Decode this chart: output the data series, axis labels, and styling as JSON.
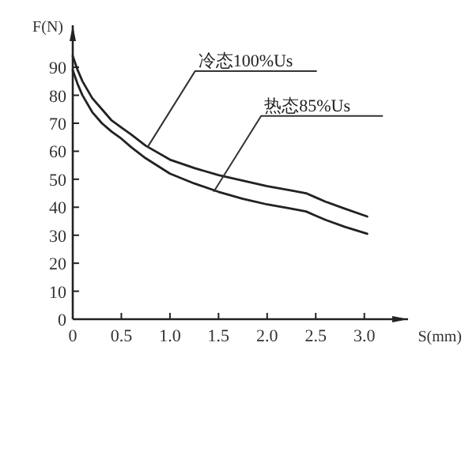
{
  "chart_data": {
    "type": "line",
    "xlabel": "S(mm)",
    "ylabel": "F(N)",
    "xlim": [
      0,
      3.45
    ],
    "ylim": [
      0,
      105
    ],
    "xticks": [
      0,
      {
        "value": 0.5,
        "label": "0.5"
      },
      {
        "value": 1,
        "label": "1.0"
      },
      {
        "value": 1.5,
        "label": "1.5"
      },
      {
        "value": 2,
        "label": "2.0"
      },
      {
        "value": 2.5,
        "label": "2.5"
      },
      {
        "value": 3,
        "label": "3.0"
      }
    ],
    "yticks": [
      0,
      10,
      20,
      30,
      40,
      50,
      60,
      70,
      80,
      90
    ],
    "x": [
      0,
      0.05,
      0.1,
      0.2,
      0.3,
      0.4,
      0.5,
      0.6,
      0.75,
      1.0,
      1.25,
      1.5,
      1.75,
      2.0,
      2.25,
      2.4,
      2.5,
      2.6,
      2.8,
      3.03
    ],
    "series": [
      {
        "color": "#222222",
        "values": [
          94,
          89,
          85,
          79,
          75,
          71,
          68.5,
          66,
          62,
          57,
          54,
          51.5,
          49.5,
          47.5,
          46,
          45,
          43.5,
          42,
          39.5,
          36.7
        ]
      },
      {
        "color": "#222222",
        "values": [
          89,
          84,
          80,
          74,
          70,
          67,
          64.5,
          61.5,
          57.5,
          52,
          48.5,
          45.5,
          43,
          41,
          39.5,
          38.5,
          37,
          35.5,
          33,
          30.5
        ]
      }
    ],
    "annotations": [
      {
        "text": "冷态100%Us",
        "x": 0.77,
        "y": 61.5
      },
      {
        "text": "热态85%Us",
        "x": 1.45,
        "y": 45.5
      }
    ],
    "grid": false,
    "marker": "none",
    "line_style": "solid"
  }
}
